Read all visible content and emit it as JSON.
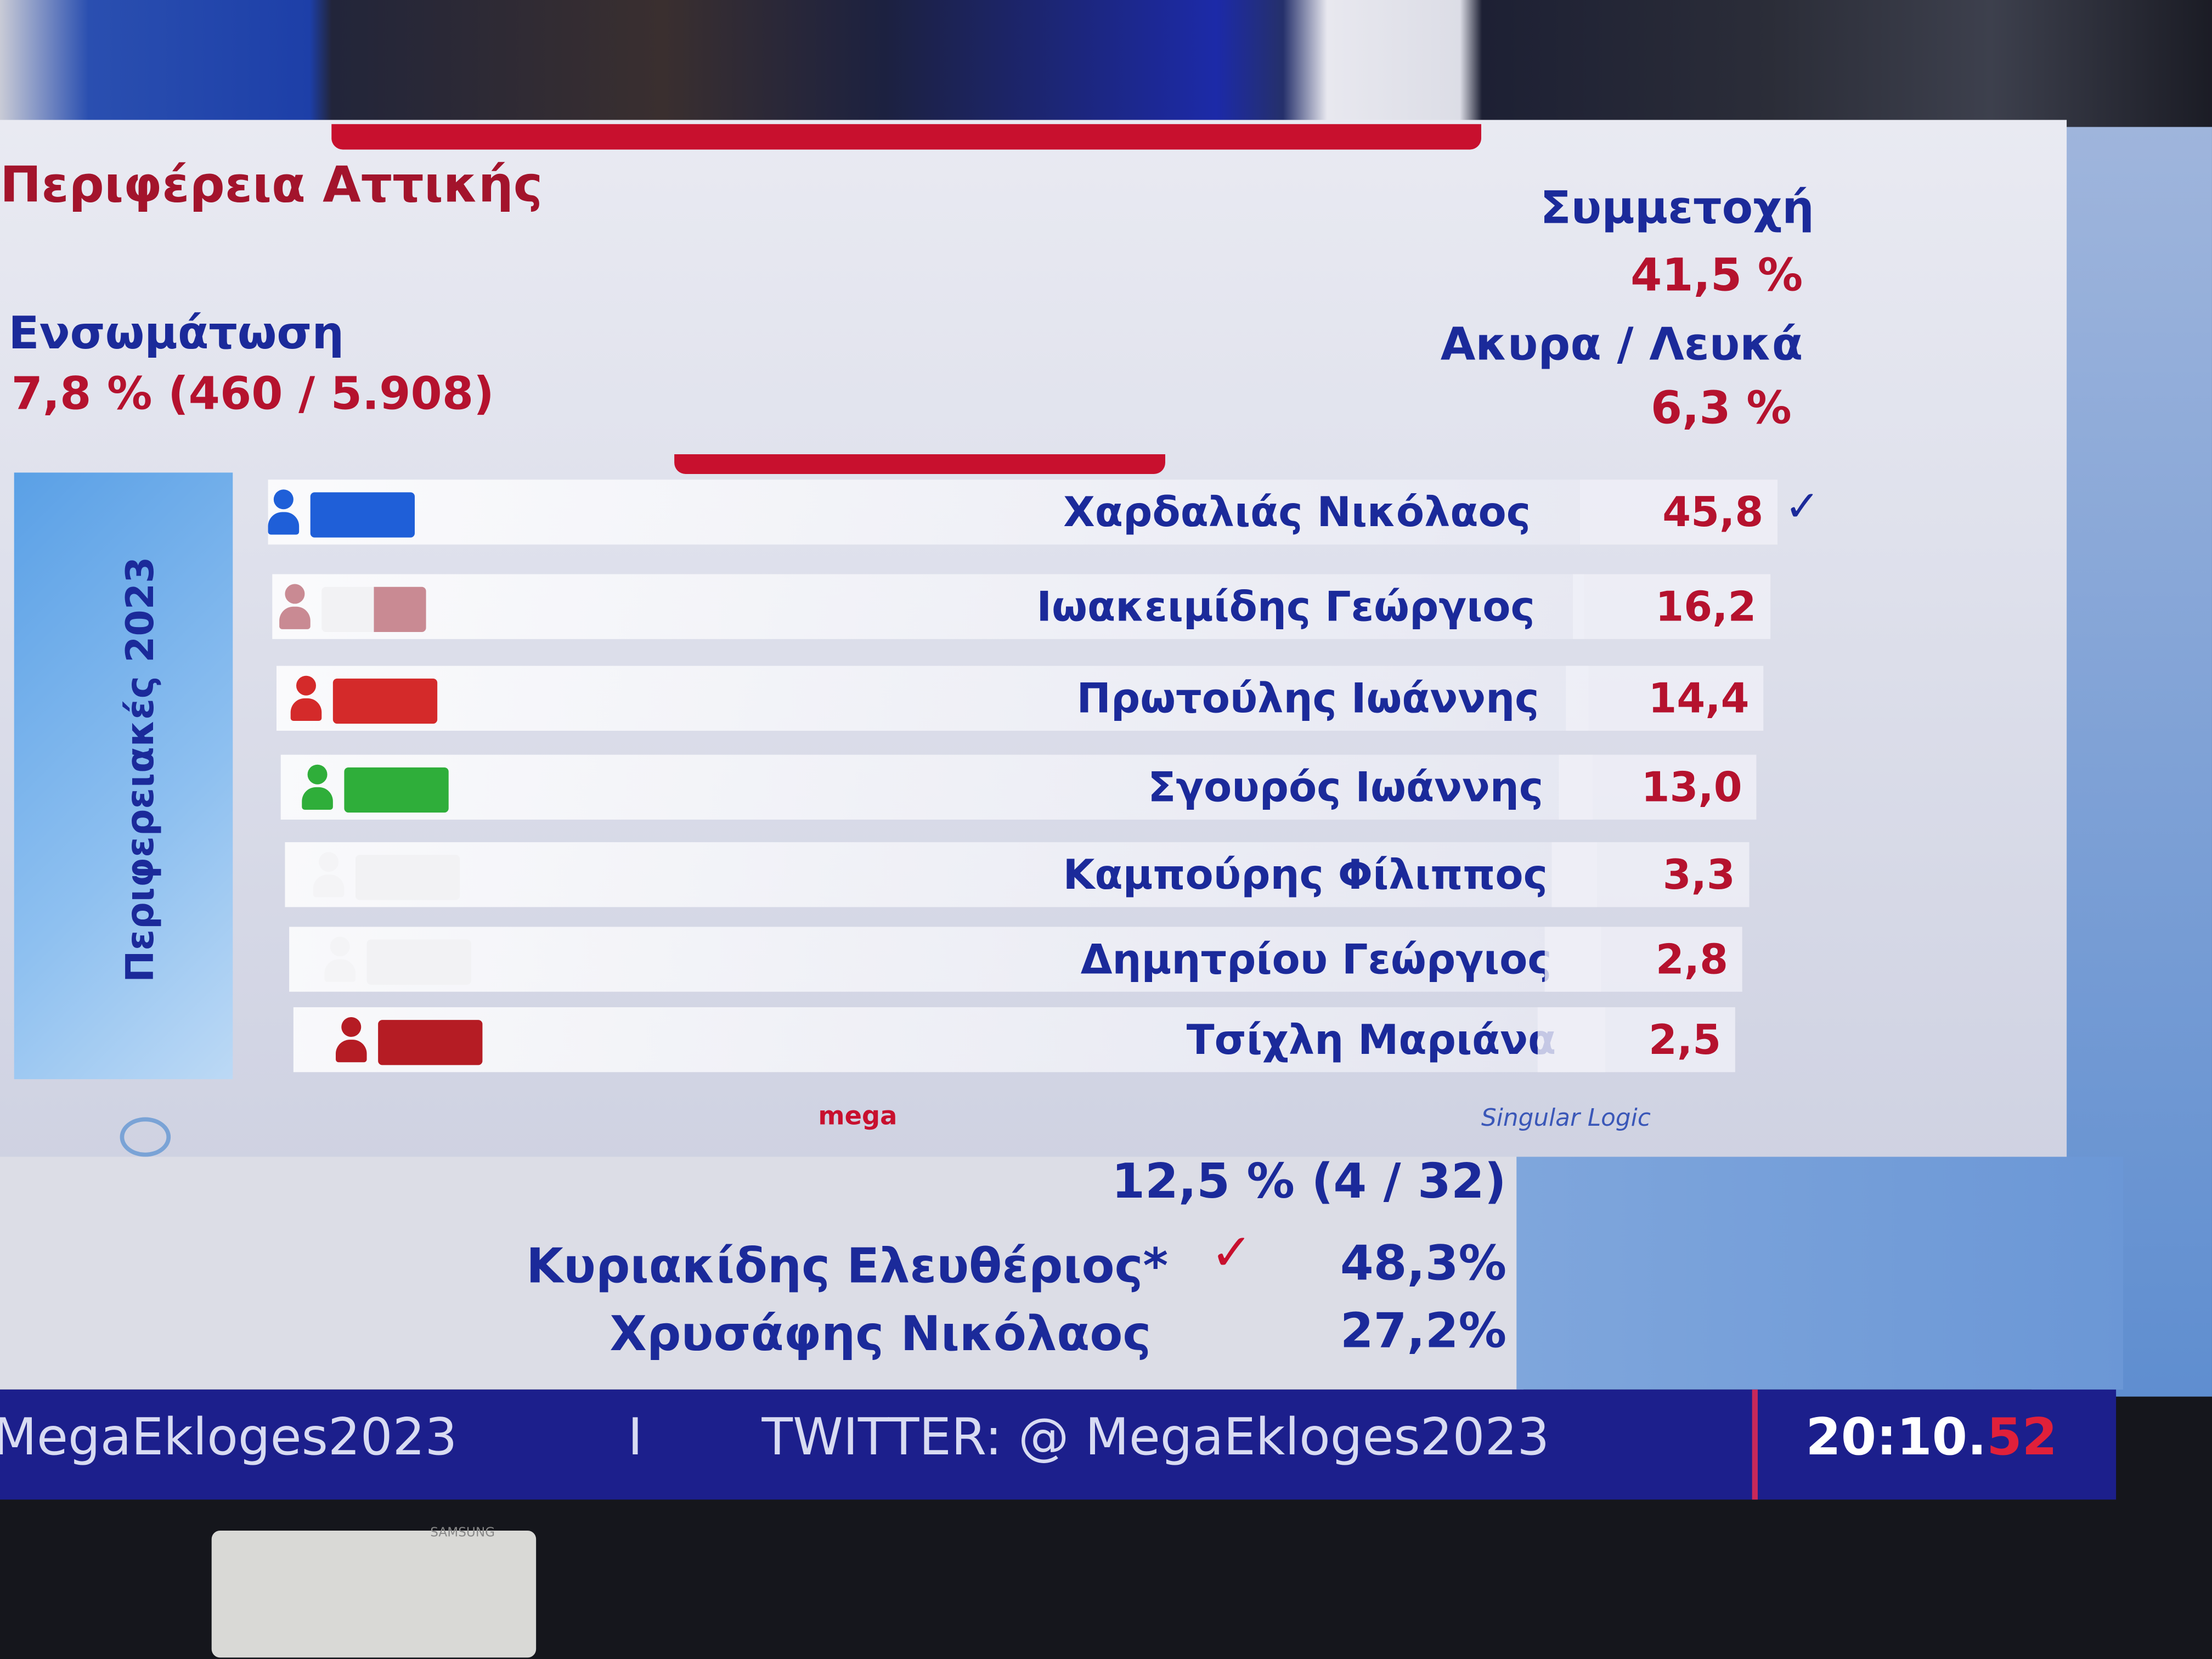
{
  "region_title": "Περιφέρεια Αττικής",
  "turnout": {
    "label": "Συμμετοχή",
    "value": "41,5 %"
  },
  "invalid_blank": {
    "label": "Ακυρα / Λευκά",
    "value": "6,3 %"
  },
  "counted": {
    "label": "Ενσωμάτωση",
    "value": "7,8 % (460 / 5.908)"
  },
  "side_label": "Περιφερειακές 2023",
  "candidates": [
    {
      "name": "Χαρδαλιάς Νικόλαος",
      "value": "45,8",
      "winner_mark": "✓",
      "color": "#1f5fd8"
    },
    {
      "name": "Ιωακειμίδης Γεώργιος",
      "value": "16,2",
      "color": "#c98a93"
    },
    {
      "name": "Πρωτούλης Ιωάννης",
      "value": "14,4",
      "color": "#d42a2a"
    },
    {
      "name": "Σγουρός Ιωάννης",
      "value": "13,0",
      "color": "#2fae3a"
    },
    {
      "name": "Καμπούρης Φίλιππος",
      "value": "3,3",
      "color": "#f2f2f4"
    },
    {
      "name": "Δημητρίου Γεώργιος",
      "value": "2,8",
      "color": "#f2f2f4"
    },
    {
      "name": "Τσίχλη Μαριάνα",
      "value": "2,5",
      "color": "#b51c24"
    }
  ],
  "logos": {
    "mega": "mega ΕΚΛΟΓΕΣ",
    "singular": "Singular Logic"
  },
  "second_region": {
    "counted": "12,5 % (4 / 32)",
    "candidates": [
      {
        "name": "Κυριακίδης Ελευθέριος*",
        "mark": "✓",
        "value": "48,3%"
      },
      {
        "name": "Χρυσάφης Νικόλαος",
        "value": "27,2%"
      }
    ]
  },
  "ticker": {
    "hashtag": "MegaEkloges2023",
    "separator": "I",
    "twitter": "TWITTER: @ MegaEkloges2023",
    "time_main": "20:10.",
    "time_seconds": "52"
  },
  "tv_brand": "SAMSUNG"
}
